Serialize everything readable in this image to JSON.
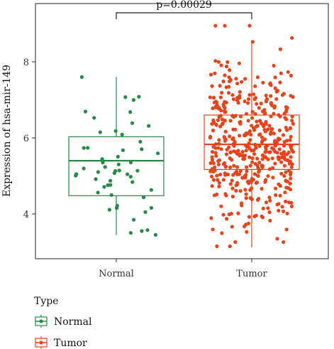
{
  "chart_data": {
    "type": "box",
    "ylabel": "Expression of hsa-mir-149",
    "xlabel": "",
    "ylim": [
      3.0,
      9.0
    ],
    "yticks": [
      4,
      6,
      8
    ],
    "categories": [
      "Normal",
      "Tumor"
    ],
    "groups": [
      {
        "name": "Normal",
        "color": "#238b45",
        "whisker_low": 3.45,
        "q1": 4.48,
        "median": 5.4,
        "q3": 6.03,
        "whisker_high": 7.6,
        "n_points": 55
      },
      {
        "name": "Tumor",
        "color": "#e8441c",
        "whisker_low": 3.12,
        "q1": 5.17,
        "median": 5.83,
        "q3": 6.6,
        "whisker_high": 8.55,
        "n_points": 480,
        "min_point": 3.15,
        "max_point": 8.95
      }
    ],
    "annotation": "p=0.00029",
    "legend": {
      "title": "Type",
      "placement": "bottom-left",
      "items": [
        "Normal",
        "Tumor"
      ]
    }
  }
}
